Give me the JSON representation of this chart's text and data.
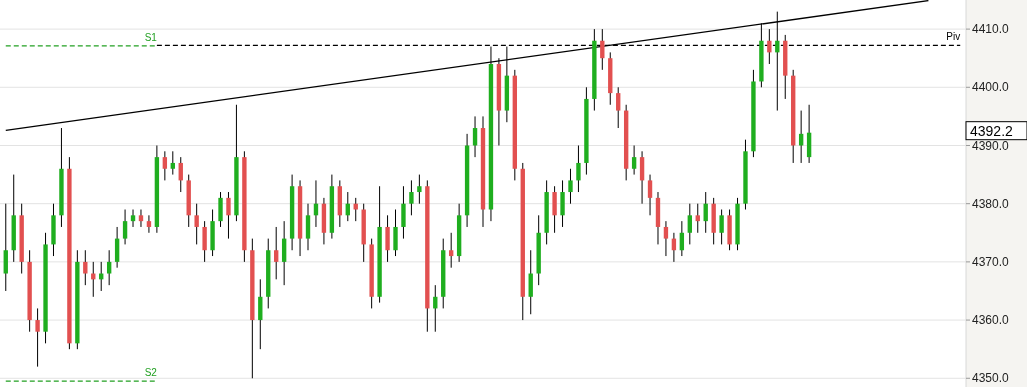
{
  "chart_data": {
    "type": "candlestick",
    "categories": [
      null,
      null,
      null,
      null,
      null,
      null,
      null,
      null,
      null,
      null,
      null,
      null,
      null,
      null,
      null,
      null,
      null,
      null,
      null,
      null,
      null,
      null,
      null,
      null,
      null,
      null,
      null,
      null,
      null,
      null,
      null,
      null,
      null,
      null,
      null,
      null,
      null,
      null,
      null,
      null,
      null,
      null,
      null,
      null,
      null,
      null,
      null,
      null,
      null,
      null,
      null,
      null,
      null,
      null,
      null,
      null,
      null,
      null,
      null,
      null,
      null,
      null,
      null,
      null,
      null,
      null,
      null,
      null,
      null,
      null,
      null,
      null,
      null,
      null,
      null,
      null,
      null,
      null,
      null,
      null,
      null,
      null,
      null,
      null,
      null,
      null,
      null,
      null,
      null,
      null,
      null,
      null,
      null,
      null,
      null,
      null,
      null,
      null,
      null,
      null,
      null,
      null,
      null,
      null,
      null,
      null,
      null,
      null,
      null,
      null,
      null,
      null,
      null,
      null,
      null,
      null,
      null,
      null,
      null,
      null,
      null
    ],
    "ohlc": [
      [
        4368,
        4380,
        4365,
        4372
      ],
      [
        4372,
        4385,
        4370,
        4378
      ],
      [
        4378,
        4380,
        4368,
        4370
      ],
      [
        4370,
        4372,
        4358,
        4360
      ],
      [
        4360,
        4362,
        4352,
        4358
      ],
      [
        4358,
        4375,
        4356,
        4373
      ],
      [
        4373,
        4380,
        4371,
        4378
      ],
      [
        4378,
        4393,
        4376,
        4386
      ],
      [
        4386,
        4388,
        4355,
        4356
      ],
      [
        4356,
        4372,
        4355,
        4370
      ],
      [
        4370,
        4372,
        4366,
        4368
      ],
      [
        4368,
        4370,
        4364,
        4367
      ],
      [
        4367,
        4370,
        4365,
        4368
      ],
      [
        4368,
        4372,
        4366,
        4370
      ],
      [
        4370,
        4376,
        4369,
        4374
      ],
      [
        4374,
        4379,
        4373,
        4377
      ],
      [
        4377,
        4379,
        4376,
        4378
      ],
      [
        4378,
        4379,
        4376,
        4377
      ],
      [
        4377,
        4378,
        4375,
        4376
      ],
      [
        4376,
        4390,
        4375,
        4388
      ],
      [
        4388,
        4389,
        4384,
        4386
      ],
      [
        4386,
        4389,
        4385,
        4387
      ],
      [
        4387,
        4388,
        4382,
        4384
      ],
      [
        4384,
        4385,
        4376,
        4378
      ],
      [
        4378,
        4380,
        4373,
        4376
      ],
      [
        4376,
        4377,
        4370,
        4372
      ],
      [
        4372,
        4379,
        4371,
        4377
      ],
      [
        4377,
        4382,
        4376,
        4381
      ],
      [
        4381,
        4382,
        4374,
        4378
      ],
      [
        4378,
        4397,
        4377,
        4388
      ],
      [
        4388,
        4389,
        4370,
        4372
      ],
      [
        4372,
        4374,
        4350,
        4360
      ],
      [
        4360,
        4367,
        4355,
        4364
      ],
      [
        4364,
        4374,
        4362,
        4372
      ],
      [
        4372,
        4376,
        4367,
        4370
      ],
      [
        4370,
        4377,
        4366,
        4374
      ],
      [
        4374,
        4385,
        4372,
        4383
      ],
      [
        4383,
        4384,
        4371,
        4374
      ],
      [
        4374,
        4380,
        4372,
        4378
      ],
      [
        4378,
        4384,
        4376,
        4380
      ],
      [
        4380,
        4381,
        4373,
        4375
      ],
      [
        4375,
        4385,
        4374,
        4383
      ],
      [
        4383,
        4384,
        4376,
        4378
      ],
      [
        4378,
        4382,
        4377,
        4380
      ],
      [
        4380,
        4381,
        4377,
        4379
      ],
      [
        4379,
        4380,
        4370,
        4373
      ],
      [
        4373,
        4374,
        4362,
        4364
      ],
      [
        4364,
        4383,
        4363,
        4376
      ],
      [
        4376,
        4378,
        4370,
        4372
      ],
      [
        4372,
        4379,
        4371,
        4376
      ],
      [
        4376,
        4383,
        4374,
        4380
      ],
      [
        4380,
        4384,
        4378,
        4382
      ],
      [
        4382,
        4385,
        4380,
        4383
      ],
      [
        4383,
        4384,
        4358,
        4362
      ],
      [
        4362,
        4366,
        4358,
        4364
      ],
      [
        4364,
        4374,
        4362,
        4372
      ],
      [
        4372,
        4375,
        4369,
        4371
      ],
      [
        4371,
        4380,
        4370,
        4378
      ],
      [
        4378,
        4392,
        4376,
        4390
      ],
      [
        4390,
        4395,
        4388,
        4393
      ],
      [
        4393,
        4395,
        4376,
        4379
      ],
      [
        4379,
        4407,
        4377,
        4404
      ],
      [
        4404,
        4405,
        4390,
        4396
      ],
      [
        4396,
        4407,
        4394,
        4402
      ],
      [
        4402,
        4403,
        4384,
        4386
      ],
      [
        4386,
        4387,
        4360,
        4364
      ],
      [
        4364,
        4372,
        4361,
        4368
      ],
      [
        4368,
        4378,
        4366,
        4375
      ],
      [
        4375,
        4384,
        4373,
        4382
      ],
      [
        4382,
        4383,
        4375,
        4378
      ],
      [
        4378,
        4384,
        4376,
        4382
      ],
      [
        4382,
        4386,
        4380,
        4384
      ],
      [
        4384,
        4390,
        4382,
        4387
      ],
      [
        4387,
        4400,
        4385,
        4398
      ],
      [
        4398,
        4410,
        4396,
        4408
      ],
      [
        4408,
        4410,
        4403,
        4405
      ],
      [
        4405,
        4406,
        4397,
        4399
      ],
      [
        4399,
        4400,
        4393,
        4396
      ],
      [
        4396,
        4397,
        4384,
        4386
      ],
      [
        4386,
        4390,
        4385,
        4388
      ],
      [
        4388,
        4389,
        4380,
        4384
      ],
      [
        4384,
        4385,
        4378,
        4381
      ],
      [
        4381,
        4382,
        4373,
        4376
      ],
      [
        4376,
        4377,
        4371,
        4374
      ],
      [
        4374,
        4375,
        4370,
        4372
      ],
      [
        4372,
        4377,
        4371,
        4375
      ],
      [
        4375,
        4380,
        4373,
        4378
      ],
      [
        4378,
        4380,
        4375,
        4377
      ],
      [
        4377,
        4382,
        4375,
        4380
      ],
      [
        4380,
        4381,
        4373,
        4375
      ],
      [
        4375,
        4379,
        4373,
        4378
      ],
      [
        4378,
        4379,
        4372,
        4373
      ],
      [
        4373,
        4381,
        4372,
        4380
      ],
      [
        4380,
        4391,
        4379,
        4389
      ],
      [
        4389,
        4403,
        4388,
        4401
      ],
      [
        4401,
        4411,
        4400,
        4408
      ],
      [
        4408,
        4410,
        4404,
        4406
      ],
      [
        4406,
        4413,
        4396,
        4408
      ],
      [
        4408,
        4409,
        4398,
        4402
      ],
      [
        4402,
        4403,
        4387,
        4390
      ],
      [
        4390,
        4396,
        4387,
        4392
      ],
      [
        4388,
        4397,
        4387,
        4392.2
      ],
      null,
      null,
      null,
      null,
      null,
      null,
      null,
      null,
      null,
      null,
      null,
      null,
      null,
      null,
      null,
      null,
      null,
      null,
      null
    ],
    "series": [
      {
        "type": "line",
        "color": "#000000",
        "line_style": "solid",
        "values": [
          4392.6,
          null,
          null,
          null,
          null,
          null,
          null,
          null,
          null,
          null,
          null,
          null,
          null,
          null,
          null,
          null,
          null,
          null,
          null,
          null,
          null,
          null,
          null,
          null,
          null,
          null,
          null,
          null,
          null,
          null,
          null,
          null,
          null,
          null,
          null,
          null,
          null,
          null,
          null,
          null,
          null,
          null,
          null,
          null,
          null,
          null,
          null,
          null,
          null,
          null,
          null,
          null,
          null,
          null,
          null,
          null,
          null,
          null,
          null,
          null,
          null,
          null,
          null,
          null,
          null,
          null,
          null,
          null,
          null,
          null,
          null,
          null,
          null,
          null,
          null,
          null,
          null,
          null,
          null,
          null,
          null,
          null,
          null,
          null,
          null,
          null,
          null,
          null,
          null,
          null,
          null,
          null,
          null,
          null,
          null,
          null,
          null,
          null,
          null,
          null,
          null,
          null,
          null,
          null,
          null,
          null,
          null,
          null,
          null,
          null,
          null,
          null,
          null,
          null,
          null,
          null,
          4414.9,
          null,
          null,
          null,
          null
        ]
      },
      {
        "type": "line",
        "name": "S1",
        "color": "#22a022",
        "line_style": "dashed",
        "values": [
          4407.1,
          null,
          null,
          null,
          null,
          null,
          null,
          null,
          null,
          null,
          null,
          null,
          null,
          null,
          null,
          null,
          null,
          null,
          null,
          4407.1,
          null,
          null,
          null,
          null,
          null,
          null,
          null,
          null,
          null,
          null,
          null,
          null,
          null,
          null,
          null,
          null,
          null,
          null,
          null,
          null,
          null,
          null,
          null,
          null,
          null,
          null,
          null,
          null,
          null,
          null,
          null,
          null,
          null,
          null,
          null,
          null,
          null,
          null,
          null,
          null,
          null,
          null,
          null,
          null,
          null,
          null,
          null,
          null,
          null,
          null,
          null,
          null,
          null,
          null,
          null,
          null,
          null,
          null,
          null,
          null,
          null,
          null,
          null,
          null,
          null,
          null,
          null,
          null,
          null,
          null,
          null,
          null,
          null,
          null,
          null,
          null,
          null,
          null,
          null,
          null,
          null,
          null,
          null,
          null,
          null,
          null,
          null,
          null,
          null,
          null,
          null,
          null,
          null,
          null,
          null,
          null,
          null,
          null,
          null,
          null,
          null
        ]
      },
      {
        "type": "line",
        "name": "S2",
        "color": "#22a022",
        "line_style": "dashed",
        "values": [
          4349.5,
          null,
          null,
          null,
          null,
          null,
          null,
          null,
          null,
          null,
          null,
          null,
          null,
          null,
          null,
          null,
          null,
          null,
          null,
          4349.5,
          null,
          null,
          null,
          null,
          null,
          null,
          null,
          null,
          null,
          null,
          null,
          null,
          null,
          null,
          null,
          null,
          null,
          null,
          null,
          null,
          null,
          null,
          null,
          null,
          null,
          null,
          null,
          null,
          null,
          null,
          null,
          null,
          null,
          null,
          null,
          null,
          null,
          null,
          null,
          null,
          null,
          null,
          null,
          null,
          null,
          null,
          null,
          null,
          null,
          null,
          null,
          null,
          null,
          null,
          null,
          null,
          null,
          null,
          null,
          null,
          null,
          null,
          null,
          null,
          null,
          null,
          null,
          null,
          null,
          null,
          null,
          null,
          null,
          null,
          null,
          null,
          null,
          null,
          null,
          null,
          null,
          null,
          null,
          null,
          null,
          null,
          null,
          null,
          null,
          null,
          null,
          null,
          null,
          null,
          null,
          null,
          null,
          null,
          null,
          null,
          null
        ]
      },
      {
        "type": "line",
        "name": "Piv",
        "color": "#000000",
        "line_style": "dashed",
        "values": [
          null,
          null,
          null,
          null,
          null,
          null,
          null,
          null,
          null,
          null,
          null,
          null,
          null,
          null,
          null,
          null,
          null,
          null,
          null,
          4407.2,
          null,
          null,
          null,
          null,
          null,
          null,
          null,
          null,
          null,
          null,
          null,
          null,
          null,
          null,
          null,
          null,
          null,
          null,
          null,
          null,
          null,
          null,
          null,
          null,
          null,
          null,
          null,
          null,
          null,
          null,
          null,
          null,
          null,
          null,
          null,
          null,
          null,
          null,
          null,
          null,
          null,
          null,
          null,
          null,
          null,
          null,
          null,
          null,
          null,
          null,
          null,
          null,
          null,
          null,
          null,
          null,
          null,
          null,
          null,
          null,
          null,
          null,
          null,
          null,
          null,
          null,
          null,
          null,
          null,
          null,
          null,
          null,
          null,
          null,
          null,
          null,
          null,
          null,
          null,
          null,
          null,
          null,
          null,
          null,
          null,
          null,
          null,
          null,
          null,
          null,
          null,
          null,
          null,
          null,
          null,
          null,
          null,
          null,
          null,
          null,
          4407.2
        ]
      }
    ],
    "ylim": [
      4348.5,
      4415
    ],
    "yticks": [
      {
        "value": 4350,
        "label": "4350.0"
      },
      {
        "value": 4360,
        "label": "4360.0"
      },
      {
        "value": 4370,
        "label": "4370.0"
      },
      {
        "value": 4380,
        "label": "4380.0"
      },
      {
        "value": 4390,
        "label": "4390.0"
      },
      {
        "value": 4400,
        "label": "4400.0"
      },
      {
        "value": 4410,
        "label": "4410.0"
      }
    ],
    "annotations": [
      "4392.2"
    ],
    "grid": "y",
    "tick_labels": "y"
  }
}
